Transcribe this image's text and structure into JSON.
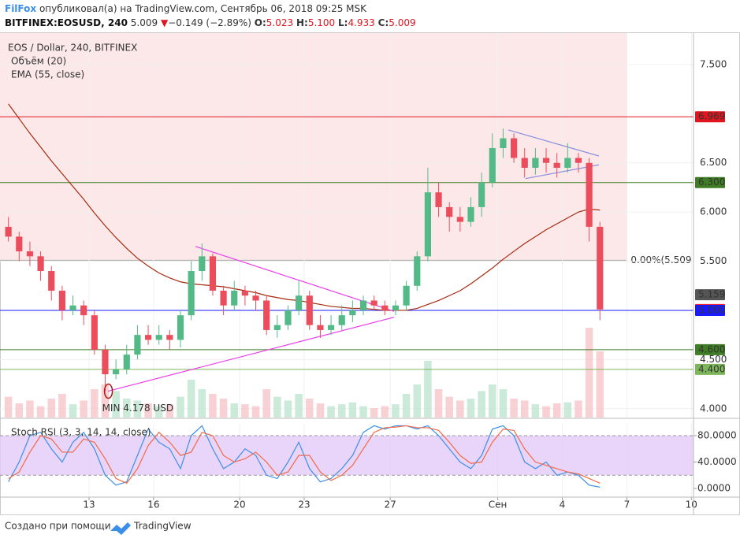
{
  "header": {
    "author": "FilFox",
    "published": "опубликовал(а) на TradingView.com, Сентябрь 06, 2018 09:25 MSK",
    "symbol": "BITFINEX:EOSUSD, 240",
    "last": "5.009",
    "arrow": "▼",
    "change": "−0.149 (−2.89%)",
    "ohlc": [
      {
        "key": "O:",
        "value": "5.023"
      },
      {
        "key": "H:",
        "value": "5.100"
      },
      {
        "key": "L:",
        "value": "4.933"
      },
      {
        "key": "C:",
        "value": "5.009"
      }
    ]
  },
  "footer": {
    "text": "Создано при помощи",
    "brand": "TradingView"
  },
  "chart_data": [
    {
      "type": "candlestick",
      "legend": [
        "EOS / Dollar, 240, BITFINEX",
        "Объём (20)",
        "EMA (55, close)"
      ],
      "x": [
        9.25,
        9.75,
        10.25,
        10.75,
        11.25,
        11.75,
        12.25,
        12.75,
        13.25,
        13.75,
        14.25,
        14.75,
        15.25,
        15.75,
        16.25,
        16.75,
        17.25,
        17.75,
        18.25,
        18.75,
        19.25,
        19.75,
        20.25,
        20.75,
        21.25,
        21.75,
        22.25,
        22.75,
        23.25,
        23.75,
        24.25,
        24.75,
        25.25,
        25.75,
        26.25,
        26.75,
        27.25,
        27.75,
        28.25,
        28.75,
        29.25,
        29.75,
        30.25,
        30.75,
        31.25,
        31.75,
        32.25,
        32.75,
        33.25,
        33.75,
        34.25,
        34.75,
        35.25,
        35.75,
        36.25,
        36.75
      ],
      "open": [
        5.85,
        5.75,
        5.6,
        5.55,
        5.4,
        5.2,
        5.0,
        5.05,
        4.95,
        4.6,
        4.35,
        4.4,
        4.55,
        4.75,
        4.7,
        4.75,
        4.7,
        4.95,
        5.4,
        5.55,
        5.2,
        5.05,
        5.2,
        5.15,
        5.1,
        4.8,
        4.85,
        5.0,
        5.15,
        4.85,
        4.8,
        4.85,
        4.95,
        5.0,
        5.1,
        5.05,
        5.0,
        5.05,
        5.25,
        5.55,
        6.2,
        6.05,
        5.95,
        5.9,
        6.05,
        6.3,
        6.65,
        6.75,
        6.55,
        6.45,
        6.55,
        6.5,
        6.45,
        6.55,
        6.5,
        5.85
      ],
      "high": [
        5.95,
        5.8,
        5.7,
        5.6,
        5.45,
        5.25,
        5.15,
        5.1,
        5.0,
        4.65,
        4.5,
        4.65,
        4.85,
        4.85,
        4.85,
        4.8,
        5.0,
        5.5,
        5.68,
        5.58,
        5.25,
        5.3,
        5.25,
        5.2,
        5.15,
        4.95,
        5.05,
        5.3,
        5.2,
        4.95,
        4.95,
        5.05,
        5.1,
        5.15,
        5.15,
        5.1,
        5.1,
        5.3,
        5.6,
        6.45,
        6.3,
        6.1,
        6.05,
        6.15,
        6.4,
        6.8,
        6.85,
        6.8,
        6.65,
        6.65,
        6.65,
        6.6,
        6.7,
        6.6,
        6.55,
        5.9
      ],
      "low": [
        5.7,
        5.5,
        5.45,
        5.3,
        5.1,
        4.9,
        4.95,
        4.85,
        4.55,
        4.178,
        4.3,
        4.35,
        4.5,
        4.65,
        4.65,
        4.6,
        4.62,
        4.9,
        5.3,
        5.15,
        4.95,
        5.0,
        5.05,
        5.0,
        4.75,
        4.72,
        4.8,
        4.95,
        4.8,
        4.72,
        4.75,
        4.8,
        4.88,
        4.95,
        5.0,
        4.95,
        4.95,
        5.0,
        5.2,
        5.5,
        5.95,
        5.8,
        5.8,
        5.85,
        5.95,
        6.25,
        6.55,
        6.5,
        6.35,
        6.38,
        6.4,
        6.35,
        6.4,
        6.4,
        5.7,
        4.9
      ],
      "close": [
        5.75,
        5.6,
        5.55,
        5.4,
        5.2,
        5.0,
        5.05,
        4.95,
        4.6,
        4.35,
        4.4,
        4.55,
        4.75,
        4.7,
        4.75,
        4.7,
        4.95,
        5.4,
        5.55,
        5.2,
        5.05,
        5.2,
        5.15,
        5.1,
        4.8,
        4.85,
        5.0,
        5.15,
        4.85,
        4.8,
        4.85,
        4.95,
        5.0,
        5.1,
        5.05,
        5.0,
        5.05,
        5.25,
        5.55,
        6.2,
        6.05,
        5.95,
        5.9,
        6.05,
        6.3,
        6.65,
        6.75,
        6.55,
        6.45,
        6.55,
        6.5,
        6.45,
        6.55,
        6.5,
        5.85,
        5.01
      ],
      "volume": [
        22,
        15,
        18,
        12,
        20,
        25,
        14,
        18,
        30,
        35,
        28,
        20,
        18,
        15,
        12,
        14,
        22,
        40,
        30,
        25,
        20,
        15,
        14,
        12,
        30,
        22,
        18,
        25,
        20,
        15,
        12,
        14,
        16,
        12,
        10,
        12,
        14,
        25,
        35,
        60,
        30,
        22,
        18,
        20,
        28,
        35,
        30,
        20,
        18,
        14,
        12,
        15,
        16,
        18,
        95,
        70
      ],
      "volume_lim": [
        0,
        100
      ],
      "ema": [
        7.1,
        6.95,
        6.8,
        6.66,
        6.52,
        6.39,
        6.26,
        6.13,
        5.99,
        5.86,
        5.74,
        5.63,
        5.53,
        5.45,
        5.38,
        5.33,
        5.29,
        5.27,
        5.26,
        5.25,
        5.24,
        5.22,
        5.2,
        5.18,
        5.15,
        5.13,
        5.11,
        5.1,
        5.08,
        5.06,
        5.04,
        5.03,
        5.02,
        5.02,
        5.01,
        5.0,
        5.0,
        5.0,
        5.02,
        5.06,
        5.1,
        5.15,
        5.2,
        5.27,
        5.35,
        5.43,
        5.52,
        5.6,
        5.68,
        5.75,
        5.82,
        5.88,
        5.94,
        6.0,
        6.03,
        6.02
      ],
      "colors": {
        "up": "#53b987",
        "down": "#eb4d5c",
        "up_volume": "#bfe5d1",
        "down_volume": "#f6c5c9",
        "ema": "#a52a0e"
      },
      "xlim": [
        8.86,
        41.1
      ],
      "ylim": [
        3.91,
        7.82
      ],
      "xticks": [
        13,
        16,
        20,
        23,
        27,
        {
          "value": 32,
          "label": "Сен"
        },
        {
          "value": 35,
          "label": "4"
        },
        {
          "value": 38,
          "label": "7"
        },
        {
          "value": 41,
          "label": "10"
        }
      ],
      "yticks": [
        {
          "value": 4,
          "label": "4.000"
        },
        {
          "value": 4.5,
          "label": "4.500"
        },
        {
          "value": 5.5,
          "label": "5.500"
        },
        {
          "value": 6,
          "label": "6.000"
        },
        {
          "value": 6.5,
          "label": "6.500"
        },
        {
          "value": 7.5,
          "label": "7.500"
        }
      ],
      "grid": true,
      "levels": [
        {
          "value": 6.969,
          "color": "#e0151f",
          "line": true
        },
        {
          "value": 6.3,
          "label": "6.300",
          "color": "#3e7d24",
          "line": true
        },
        {
          "value": 5.159,
          "color": "#555555",
          "line": false
        },
        {
          "value": 5.009,
          "color": "#f2283a",
          "line": false
        },
        {
          "value": 5,
          "label": "5.000",
          "color": "#1a1aff",
          "line": true
        },
        {
          "value": 4.6,
          "label": "4.600",
          "color": "#3e7d24",
          "line": true
        },
        {
          "value": 4.4,
          "label": "4.400",
          "color": "#7db65a",
          "line": true
        }
      ],
      "fib": {
        "value": 5.509,
        "label": "0.00%(5.509",
        "color": "#aaaaaa",
        "x_end": 38,
        "fill": "#fce8e8"
      },
      "drawings": [
        {
          "x": [
            13.88,
            27.18
          ],
          "y": [
            4.178,
            4.93
          ],
          "color": "#e83ee8"
        },
        {
          "x": [
            17.95,
            27.18
          ],
          "y": [
            5.65,
            4.99
          ],
          "color": "#e83ee8"
        },
        {
          "x": [
            32.49,
            36.7
          ],
          "y": [
            6.835,
            6.57
          ],
          "color": "#8a8ee0"
        },
        {
          "x": [
            33.29,
            36.7
          ],
          "y": [
            6.34,
            6.48
          ],
          "color": "#8a8ee0"
        }
      ],
      "annotation": {
        "text": "MIN 4.178 USD",
        "x": 13.9,
        "value": 4.178,
        "color": "#b01515"
      }
    },
    {
      "type": "stoch",
      "legend": "Stoch RSI (3, 3, 14, 14, close)",
      "x": [
        9.25,
        9.75,
        10.25,
        10.75,
        11.25,
        11.75,
        12.25,
        12.75,
        13.25,
        13.75,
        14.25,
        14.75,
        15.25,
        15.75,
        16.25,
        16.75,
        17.25,
        17.75,
        18.25,
        18.75,
        19.25,
        19.75,
        20.25,
        20.75,
        21.25,
        21.75,
        22.25,
        22.75,
        23.25,
        23.75,
        24.25,
        24.75,
        25.25,
        25.75,
        26.25,
        26.75,
        27.25,
        27.75,
        28.25,
        28.75,
        29.25,
        29.75,
        30.25,
        30.75,
        31.25,
        31.75,
        32.25,
        32.75,
        33.25,
        33.75,
        34.25,
        34.75,
        35.25,
        35.75,
        36.25,
        36.75
      ],
      "series": [
        {
          "color": "#3c8fe8",
          "values": [
            10,
            40,
            80,
            85,
            60,
            40,
            70,
            85,
            60,
            20,
            5,
            10,
            50,
            90,
            70,
            60,
            30,
            80,
            95,
            60,
            30,
            40,
            60,
            50,
            20,
            15,
            40,
            70,
            30,
            10,
            15,
            30,
            50,
            85,
            95,
            90,
            95,
            95,
            90,
            95,
            80,
            60,
            40,
            30,
            50,
            90,
            95,
            80,
            40,
            30,
            40,
            20,
            25,
            20,
            5,
            2
          ]
        },
        {
          "color": "#f06b4a",
          "values": [
            15,
            25,
            55,
            80,
            75,
            55,
            55,
            75,
            70,
            45,
            15,
            8,
            30,
            65,
            85,
            70,
            50,
            55,
            85,
            80,
            50,
            40,
            45,
            55,
            40,
            20,
            25,
            50,
            50,
            25,
            12,
            20,
            35,
            60,
            85,
            92,
            93,
            95,
            92,
            92,
            88,
            70,
            50,
            38,
            40,
            70,
            90,
            88,
            60,
            40,
            35,
            30,
            25,
            22,
            15,
            8
          ]
        }
      ],
      "band": [
        20,
        80
      ],
      "band_color": "#e4cbf7",
      "ylim": [
        -11.9,
        97.9
      ],
      "yticks": [
        {
          "value": 0,
          "label": "0.0000"
        },
        {
          "value": 40,
          "label": "40.0000"
        },
        {
          "value": 80,
          "label": "80.0000"
        }
      ]
    }
  ]
}
